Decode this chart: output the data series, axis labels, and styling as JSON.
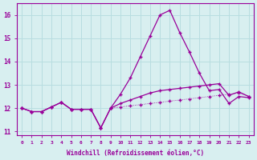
{
  "xlabel": "Windchill (Refroidissement éolien,°C)",
  "ylabel": "",
  "background_color": "#d8eff0",
  "grid_color": "#b8dde0",
  "line_color": "#990099",
  "x": [
    0,
    1,
    2,
    3,
    4,
    5,
    6,
    7,
    8,
    9,
    10,
    11,
    12,
    13,
    14,
    15,
    16,
    17,
    18,
    19,
    20,
    21,
    22,
    23
  ],
  "line1": [
    12.0,
    11.85,
    11.85,
    12.05,
    12.25,
    11.95,
    11.95,
    11.95,
    11.15,
    12.0,
    12.05,
    12.1,
    12.15,
    12.2,
    12.25,
    12.3,
    12.35,
    12.4,
    12.45,
    12.5,
    12.55,
    12.6,
    12.65,
    12.5
  ],
  "line2": [
    12.0,
    11.85,
    11.85,
    12.05,
    12.25,
    11.95,
    11.95,
    11.95,
    11.15,
    12.0,
    12.6,
    13.3,
    14.2,
    15.1,
    16.0,
    16.2,
    15.25,
    14.4,
    13.5,
    12.75,
    12.8,
    12.2,
    12.5,
    12.45
  ],
  "line3": [
    12.0,
    11.85,
    11.85,
    12.05,
    12.25,
    11.95,
    11.95,
    11.95,
    11.15,
    12.0,
    12.2,
    12.35,
    12.5,
    12.65,
    12.75,
    12.8,
    12.85,
    12.9,
    12.95,
    13.0,
    13.05,
    12.55,
    12.7,
    12.5
  ],
  "ylim": [
    10.85,
    16.5
  ],
  "yticks": [
    11,
    12,
    13,
    14,
    15,
    16
  ],
  "xticks": [
    0,
    1,
    2,
    3,
    4,
    5,
    6,
    7,
    8,
    9,
    10,
    11,
    12,
    13,
    14,
    15,
    16,
    17,
    18,
    19,
    20,
    21,
    22,
    23
  ]
}
